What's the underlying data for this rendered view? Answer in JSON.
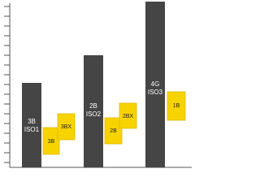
{
  "groups": [
    {
      "label": [
        "3B",
        "ISO1"
      ],
      "boxes": [
        "3B",
        "3BX"
      ]
    },
    {
      "label": [
        "2B",
        "ISO2"
      ],
      "boxes": [
        "2B",
        "2BX"
      ]
    },
    {
      "label": [
        "4G",
        "ISO3"
      ],
      "boxes": [
        "1B"
      ]
    }
  ]
}
